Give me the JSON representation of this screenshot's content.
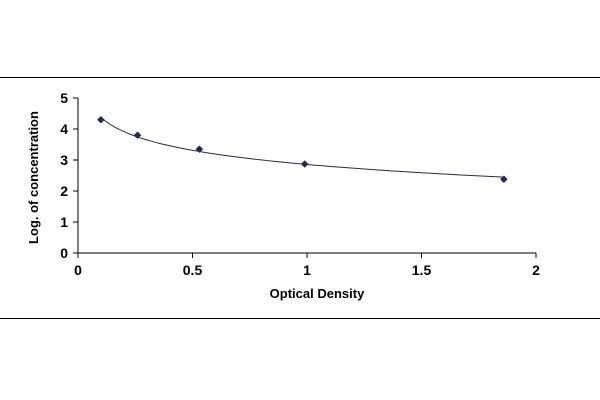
{
  "chart_data": {
    "type": "scatter",
    "xlabel": "Optical Density",
    "ylabel": "Log. of concentration",
    "xlim": [
      0,
      2
    ],
    "ylim": [
      0,
      5
    ],
    "x_ticks": [
      "0",
      "0.5",
      "1",
      "1.5",
      "2"
    ],
    "y_ticks": [
      "0",
      "1",
      "2",
      "3",
      "4",
      "5"
    ],
    "grid": false,
    "series": [
      {
        "points": [
          {
            "x": 0.1,
            "y": 4.3
          },
          {
            "x": 0.26,
            "y": 3.8
          },
          {
            "x": 0.53,
            "y": 3.35
          },
          {
            "x": 0.99,
            "y": 2.87
          },
          {
            "x": 1.86,
            "y": 2.38
          }
        ],
        "trendline": "logarithmic",
        "marker": "diamond",
        "color": "#1f2a5c"
      }
    ]
  }
}
